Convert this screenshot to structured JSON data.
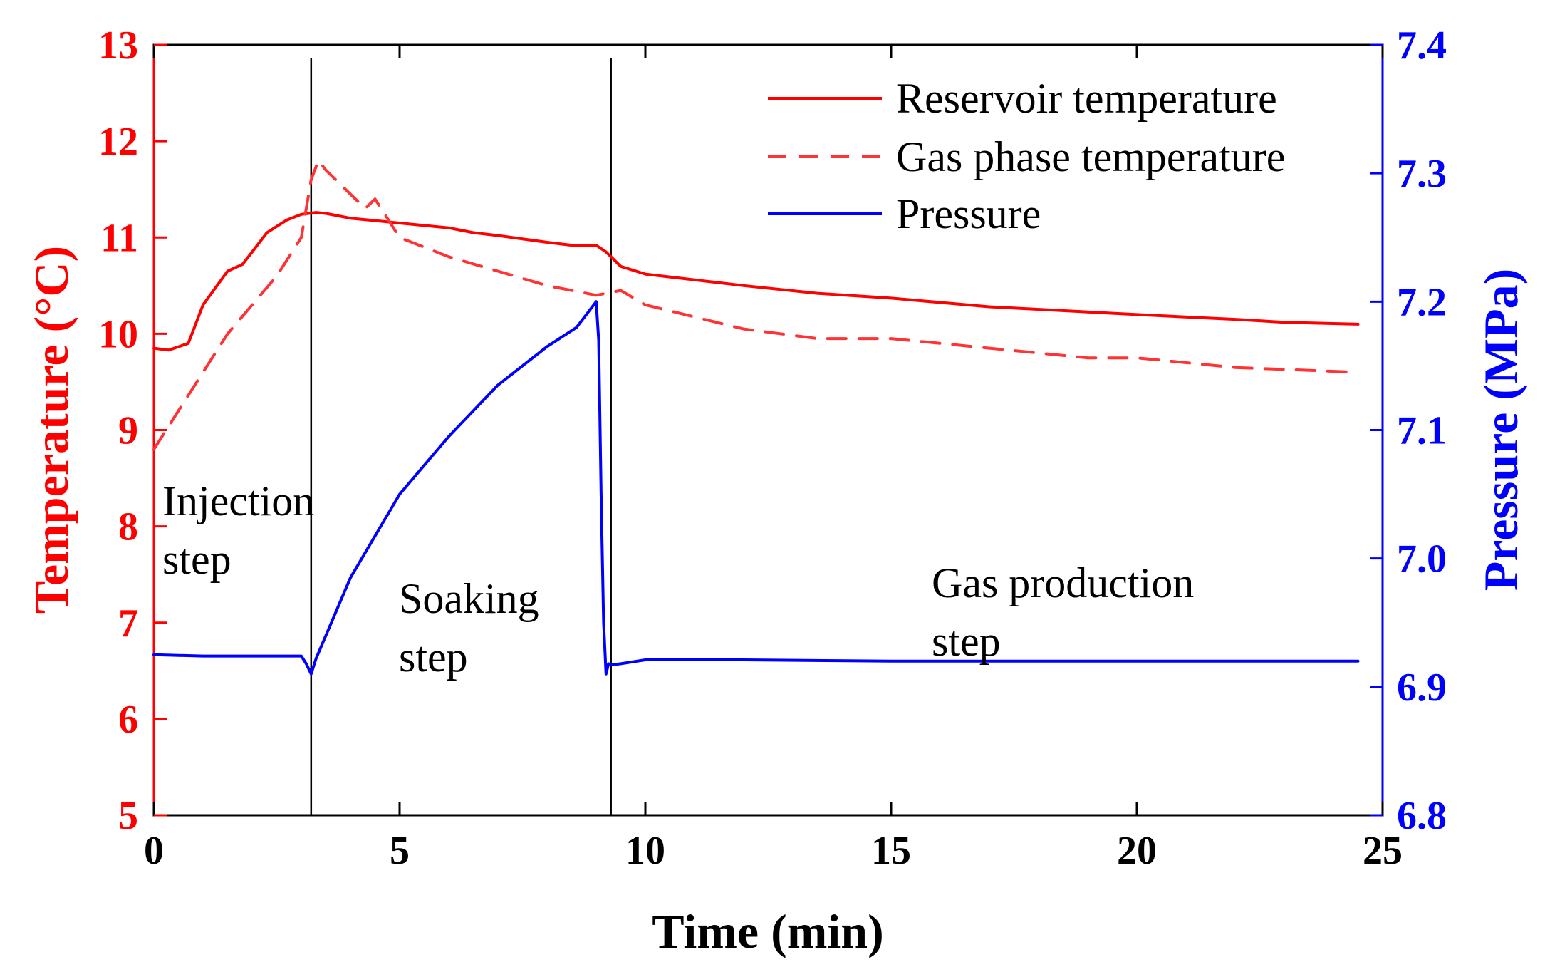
{
  "chart_data": {
    "type": "line",
    "xlabel": "Time (min)",
    "ylabel_left": "Temperature (°C)",
    "ylabel_right": "Pressure (MPa)",
    "xlim": [
      0,
      25
    ],
    "ylim_left": [
      5,
      13
    ],
    "ylim_right": [
      6.8,
      7.4
    ],
    "x_ticks": [
      "0",
      "5",
      "10",
      "15",
      "20",
      "25"
    ],
    "y_left_ticks": [
      "5",
      "6",
      "7",
      "8",
      "9",
      "10",
      "11",
      "12",
      "13"
    ],
    "y_right_ticks": [
      "6.8",
      "6.9",
      "7.0",
      "7.1",
      "7.2",
      "7.3",
      "7.4"
    ],
    "grid": false,
    "legend_position": "top-right",
    "colors": {
      "temperature_axis": "#ff0000",
      "pressure_axis": "#0000ff",
      "reservoir": "#ff0000",
      "gas_phase": "#ff3333",
      "pressure": "#0000ff"
    },
    "series": [
      {
        "name": "Reservoir temperature",
        "axis": "left",
        "style": "solid",
        "x": [
          0,
          0.3,
          0.7,
          1.0,
          1.5,
          1.8,
          2.0,
          2.3,
          2.7,
          3.0,
          3.3,
          3.5,
          4.0,
          5.0,
          6.0,
          6.5,
          7.0,
          8.0,
          8.5,
          9.0,
          9.2,
          9.5,
          10.0,
          12.0,
          13.5,
          15.0,
          17.0,
          20.0,
          22.0,
          23.0,
          24.5
        ],
        "y": [
          9.85,
          9.83,
          9.9,
          10.3,
          10.65,
          10.72,
          10.85,
          11.05,
          11.18,
          11.24,
          11.26,
          11.25,
          11.2,
          11.15,
          11.1,
          11.05,
          11.02,
          10.95,
          10.92,
          10.92,
          10.85,
          10.7,
          10.62,
          10.5,
          10.42,
          10.37,
          10.28,
          10.2,
          10.15,
          10.12,
          10.1
        ]
      },
      {
        "name": "Gas phase temperature",
        "axis": "left",
        "style": "dashed",
        "x": [
          0,
          0.5,
          1.0,
          1.5,
          2.0,
          2.5,
          3.0,
          3.2,
          3.35,
          3.5,
          4.0,
          4.3,
          4.5,
          5.0,
          6.0,
          7.0,
          8.0,
          9.0,
          9.5,
          10.0,
          12.0,
          13.5,
          15.0,
          17.0,
          19.0,
          20.0,
          22.0,
          24.5
        ],
        "y": [
          8.8,
          9.2,
          9.6,
          10.0,
          10.3,
          10.6,
          11.0,
          11.6,
          11.8,
          11.7,
          11.45,
          11.3,
          11.4,
          11.0,
          10.8,
          10.65,
          10.5,
          10.4,
          10.45,
          10.3,
          10.05,
          9.95,
          9.95,
          9.85,
          9.75,
          9.75,
          9.65,
          9.6
        ]
      },
      {
        "name": "Pressure",
        "axis": "right",
        "style": "solid",
        "x": [
          0,
          1.0,
          2.0,
          3.0,
          3.1,
          3.2,
          3.3,
          3.5,
          4.0,
          5.0,
          6.0,
          7.0,
          8.0,
          8.6,
          9.0,
          9.05,
          9.1,
          9.15,
          9.2,
          9.25,
          9.3,
          9.5,
          10.0,
          12.0,
          15.0,
          18.0,
          21.0,
          24.5
        ],
        "y": [
          6.925,
          6.924,
          6.924,
          6.924,
          6.918,
          6.91,
          6.922,
          6.94,
          6.985,
          7.05,
          7.095,
          7.135,
          7.165,
          7.18,
          7.2,
          7.17,
          7.05,
          6.95,
          6.91,
          6.918,
          6.917,
          6.918,
          6.921,
          6.921,
          6.92,
          6.92,
          6.92,
          6.92
        ]
      }
    ],
    "legend": [
      "Reservoir temperature",
      "Gas phase temperature",
      "Pressure"
    ],
    "dividers_x": [
      3.2,
      9.3
    ],
    "annotations": [
      {
        "id": "injection",
        "lines": [
          "Injection",
          "step"
        ]
      },
      {
        "id": "soaking",
        "lines": [
          "Soaking",
          "step"
        ]
      },
      {
        "id": "production",
        "lines": [
          "Gas production",
          "step"
        ]
      }
    ]
  }
}
